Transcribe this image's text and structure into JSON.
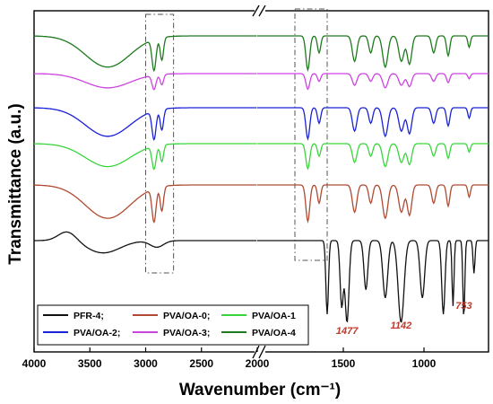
{
  "chart_data": {
    "type": "line",
    "title": "",
    "xlabel": "Wavenumber (cm⁻¹)",
    "ylabel": "Transmittance (a.u.)",
    "x_axis_reversed": true,
    "x_axis_broken": true,
    "x_segments": [
      [
        4000,
        2000
      ],
      [
        2000,
        600
      ]
    ],
    "xticks": [
      4000,
      3500,
      3000,
      2500,
      2000,
      1500,
      1000
    ],
    "yticks_shown": false,
    "grid": false,
    "legend_position": "bottom-left",
    "highlight_regions": [
      [
        3000,
        2750
      ],
      [
        1800,
        1600
      ]
    ],
    "annotations": [
      {
        "text": "1477",
        "x": 1477
      },
      {
        "text": "1142",
        "x": 1142
      },
      {
        "text": "753",
        "x": 753
      }
    ],
    "series": [
      {
        "name": "PFR-4",
        "color": "#111111",
        "offset": 0,
        "scale": 1.0
      },
      {
        "name": "PVA/OA-0",
        "color": "#b04a32",
        "offset": 1,
        "scale": 0.9
      },
      {
        "name": "PVA/OA-1",
        "color": "#38d63c",
        "offset": 2,
        "scale": 0.75
      },
      {
        "name": "PVA/OA-2",
        "color": "#1a22d8",
        "offset": 3,
        "scale": 0.85
      },
      {
        "name": "PVA/OA-3",
        "color": "#cc44e0",
        "offset": 4,
        "scale": 0.6
      },
      {
        "name": "PVA/OA-4",
        "color": "#1e7a1e",
        "offset": 5,
        "scale": 0.9
      }
    ],
    "legend_rows": [
      [
        {
          "name": "PFR-4;",
          "color": "#111111"
        },
        {
          "name": "PVA/OA-0;",
          "color": "#b04a32"
        },
        {
          "name": "PVA/OA-1",
          "color": "#38d63c"
        }
      ],
      [
        {
          "name": "PVA/OA-2;",
          "color": "#1a22d8"
        },
        {
          "name": "PVA/OA-3;",
          "color": "#cc44e0"
        },
        {
          "name": "PVA/OA-4",
          "color": "#1e7a1e"
        }
      ]
    ]
  }
}
